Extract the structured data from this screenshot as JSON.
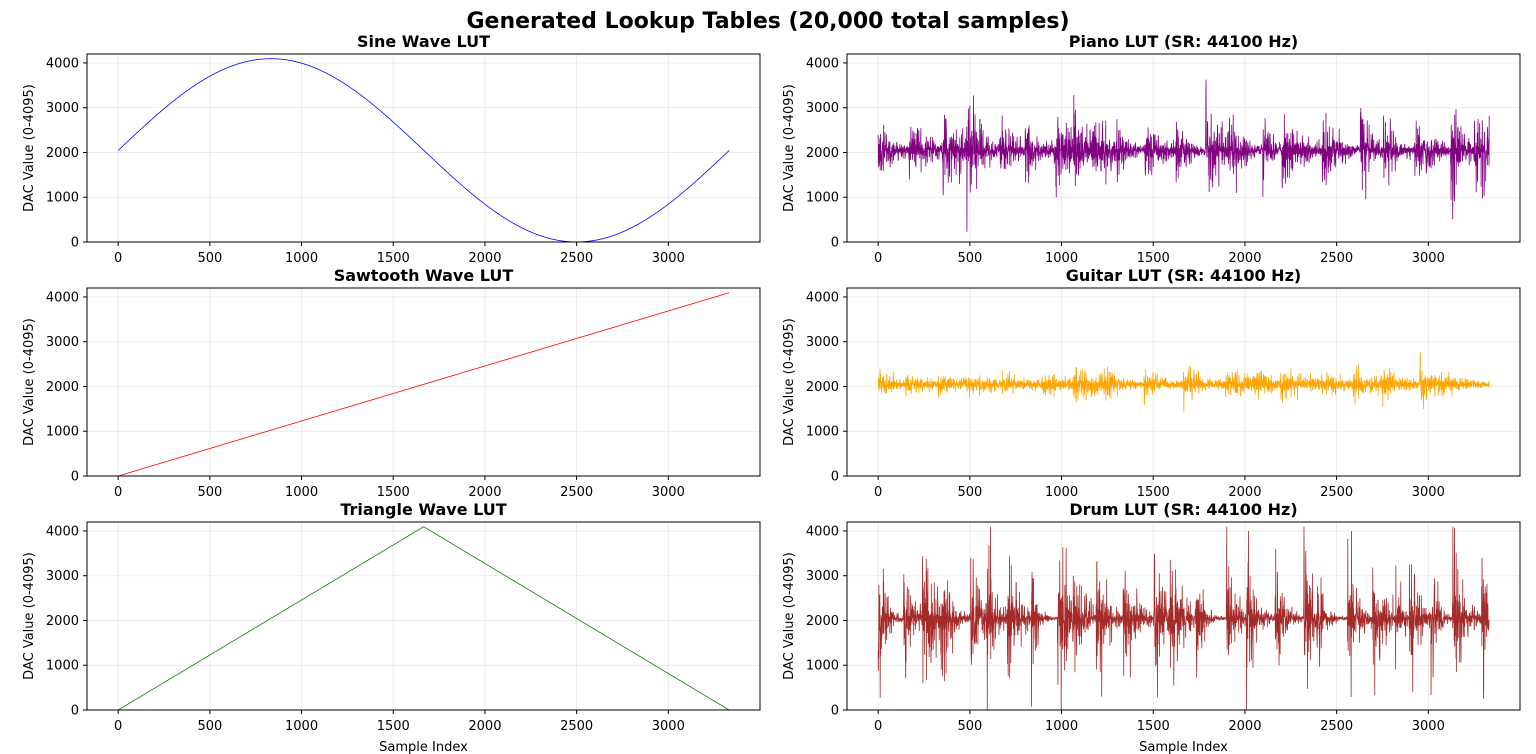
{
  "figure": {
    "title": "Generated Lookup Tables (20,000 total samples)"
  },
  "chart_data": [
    {
      "type": "line",
      "title": "Sine Wave LUT",
      "ylabel": "DAC Value (0-4095)",
      "xlabel": "",
      "color": "#0000ff",
      "generator": "sine",
      "seed": 11,
      "n_samples": 3333,
      "xlim": [
        -170,
        3500
      ],
      "ylim": [
        0,
        4200
      ],
      "xticks": [
        0,
        500,
        1000,
        1500,
        2000,
        2500,
        3000
      ],
      "yticks": [
        0,
        1000,
        2000,
        3000,
        4000
      ],
      "grid": true
    },
    {
      "type": "line",
      "title": "Piano LUT (SR: 44100 Hz)",
      "ylabel": "DAC Value (0-4095)",
      "xlabel": "",
      "color": "#800080",
      "generator": "piano",
      "seed": 23,
      "n_samples": 3333,
      "xlim": [
        -170,
        3500
      ],
      "ylim": [
        0,
        4200
      ],
      "xticks": [
        0,
        500,
        1000,
        1500,
        2000,
        2500,
        3000
      ],
      "yticks": [
        0,
        1000,
        2000,
        3000,
        4000
      ],
      "grid": true
    },
    {
      "type": "line",
      "title": "Sawtooth Wave LUT",
      "ylabel": "DAC Value (0-4095)",
      "xlabel": "",
      "color": "#ff0000",
      "generator": "sawtooth",
      "seed": 31,
      "n_samples": 3333,
      "xlim": [
        -170,
        3500
      ],
      "ylim": [
        0,
        4200
      ],
      "xticks": [
        0,
        500,
        1000,
        1500,
        2000,
        2500,
        3000
      ],
      "yticks": [
        0,
        1000,
        2000,
        3000,
        4000
      ],
      "grid": true
    },
    {
      "type": "line",
      "title": "Guitar LUT (SR: 44100 Hz)",
      "ylabel": "DAC Value (0-4095)",
      "xlabel": "",
      "color": "#ffa500",
      "generator": "guitar",
      "seed": 47,
      "n_samples": 3333,
      "xlim": [
        -170,
        3500
      ],
      "ylim": [
        0,
        4200
      ],
      "xticks": [
        0,
        500,
        1000,
        1500,
        2000,
        2500,
        3000
      ],
      "yticks": [
        0,
        1000,
        2000,
        3000,
        4000
      ],
      "grid": true
    },
    {
      "type": "line",
      "title": "Triangle Wave LUT",
      "ylabel": "DAC Value (0-4095)",
      "xlabel": "Sample Index",
      "color": "#008000",
      "generator": "triangle",
      "seed": 53,
      "n_samples": 3333,
      "xlim": [
        -170,
        3500
      ],
      "ylim": [
        0,
        4200
      ],
      "xticks": [
        0,
        500,
        1000,
        1500,
        2000,
        2500,
        3000
      ],
      "yticks": [
        0,
        1000,
        2000,
        3000,
        4000
      ],
      "grid": true
    },
    {
      "type": "line",
      "title": "Drum LUT (SR: 44100 Hz)",
      "ylabel": "DAC Value (0-4095)",
      "xlabel": "Sample Index",
      "color": "#a52a2a",
      "generator": "drum",
      "seed": 67,
      "n_samples": 3333,
      "xlim": [
        -170,
        3500
      ],
      "ylim": [
        0,
        4200
      ],
      "xticks": [
        0,
        500,
        1000,
        1500,
        2000,
        2500,
        3000
      ],
      "yticks": [
        0,
        1000,
        2000,
        3000,
        4000
      ],
      "grid": true
    }
  ]
}
